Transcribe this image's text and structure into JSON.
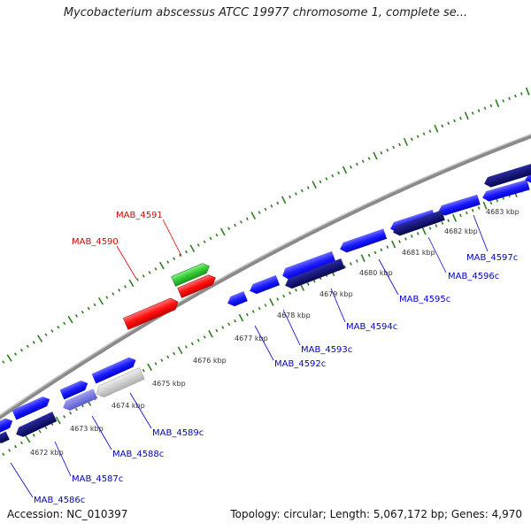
{
  "title": "Mycobacterium abscessus ATCC 19977 chromosome 1, complete se...",
  "footer": {
    "accession": "Accession: NC_010397",
    "summary": "Topology: circular; Length: 5,067,172 bp; Genes: 4,970"
  },
  "colors": {
    "backbone": "#909090",
    "tick": "#2e7d1f",
    "gene_forward_label": "#dd0000",
    "gene_reverse_label": "#0000cc",
    "gene_blue": "#1a1aff",
    "gene_navy": "#0d0d6b",
    "gene_red": "#ff0000",
    "gene_green": "#33cc33",
    "gene_grey": "#c0c0c0",
    "gene_lavender": "#7070dd"
  },
  "scale_labels": [
    "4672 kbp",
    "4673 kbp",
    "4674 kbp",
    "4675 kbp",
    "4676 kbp",
    "4677 kbp",
    "4678 kbp",
    "4679 kbp",
    "4680 kbp",
    "4681 kbp",
    "4682 kbp",
    "4683 kbp"
  ],
  "gene_labels": [
    {
      "name": "MAB_4591",
      "strand": "forward"
    },
    {
      "name": "MAB_4590",
      "strand": "forward"
    },
    {
      "name": "MAB_4597c",
      "strand": "reverse"
    },
    {
      "name": "MAB_4596c",
      "strand": "reverse"
    },
    {
      "name": "MAB_4595c",
      "strand": "reverse"
    },
    {
      "name": "MAB_4594c",
      "strand": "reverse"
    },
    {
      "name": "MAB_4593c",
      "strand": "reverse"
    },
    {
      "name": "MAB_4592c",
      "strand": "reverse"
    },
    {
      "name": "MAB_4589c",
      "strand": "reverse"
    },
    {
      "name": "MAB_4588c",
      "strand": "reverse"
    },
    {
      "name": "MAB_4587c",
      "strand": "reverse"
    },
    {
      "name": "MAB_4586c",
      "strand": "reverse"
    }
  ]
}
